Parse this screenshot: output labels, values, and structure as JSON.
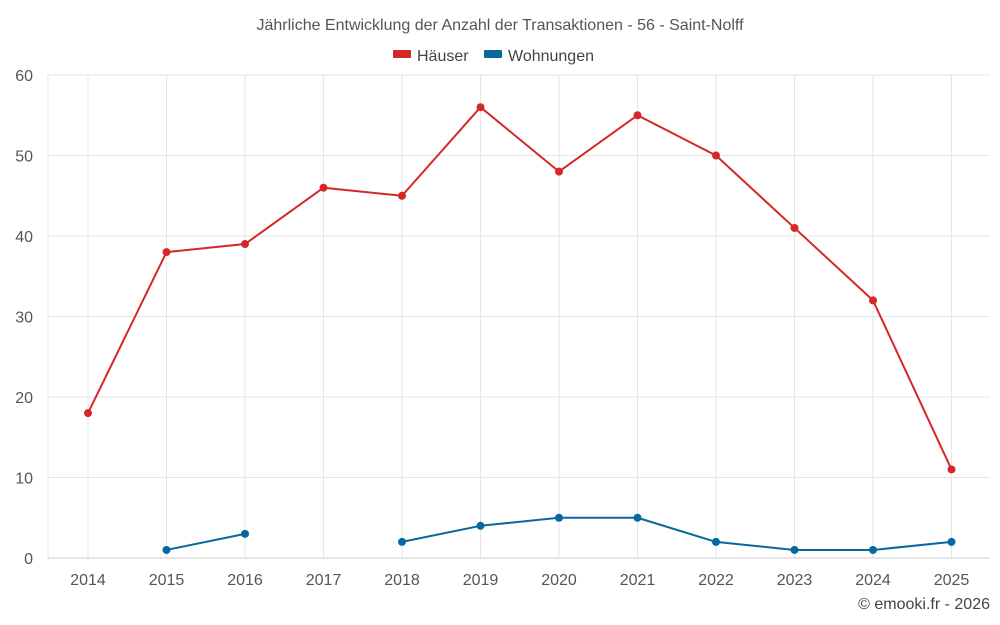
{
  "chart_data": {
    "type": "line",
    "title": "Jährliche Entwicklung der Anzahl der Transaktionen - 56 - Saint-Nolff",
    "categories": [
      "2014",
      "2015",
      "2016",
      "2017",
      "2018",
      "2019",
      "2020",
      "2021",
      "2022",
      "2023",
      "2024",
      "2025"
    ],
    "ylim": [
      0,
      60
    ],
    "yticks": [
      0,
      10,
      20,
      30,
      40,
      50,
      60
    ],
    "grid": true,
    "legend_position": "top-center",
    "series": [
      {
        "name": "Häuser",
        "color": "#d62728",
        "values": [
          18,
          38,
          39,
          46,
          45,
          56,
          48,
          55,
          50,
          41,
          32,
          11
        ]
      },
      {
        "name": "Wohnungen",
        "color": "#08679e",
        "values": [
          null,
          1,
          3,
          null,
          2,
          4,
          5,
          5,
          2,
          1,
          1,
          2
        ]
      }
    ]
  },
  "credit": "© emooki.fr - 2026"
}
